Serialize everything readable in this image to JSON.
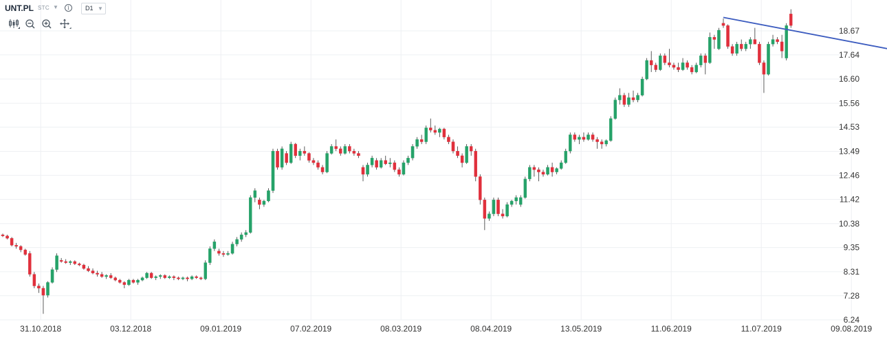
{
  "header": {
    "symbol": "UNT.PL",
    "instrument_type": "STC",
    "info_icon": "info-icon",
    "timeframe": "D1",
    "tools": [
      "candles-icon",
      "zoom-out-icon",
      "zoom-in-icon",
      "move-icon"
    ]
  },
  "colors": {
    "up": "#26a269",
    "down": "#e0303c",
    "trendline": "#3b5bbf",
    "grid": "#eef0f3"
  },
  "chart_data": {
    "type": "candlestick",
    "title": "UNT.PL",
    "ylim": [
      6.24,
      19.5
    ],
    "y_ticks": [
      6.24,
      7.28,
      8.31,
      9.35,
      10.38,
      11.42,
      12.46,
      13.49,
      14.53,
      15.56,
      16.6,
      17.64,
      18.67
    ],
    "y_tick_labels": [
      "6.24",
      "7.28",
      "8.31",
      "9.35",
      "10.38",
      "11.42",
      "12.46",
      "13.49",
      "14.53",
      "15.56",
      "16.60",
      "17.64",
      "18.67"
    ],
    "x_ticks": [
      {
        "label": "31.10.2018",
        "index": 4
      },
      {
        "label": "03.12.2018",
        "index": 24
      },
      {
        "label": "09.01.2019",
        "index": 44
      },
      {
        "label": "07.02.2019",
        "index": 64
      },
      {
        "label": "08.03.2019",
        "index": 84
      },
      {
        "label": "08.04.2019",
        "index": 104
      },
      {
        "label": "13.05.2019",
        "index": 124
      },
      {
        "label": "11.06.2019",
        "index": 144
      },
      {
        "label": "11.07.2019",
        "index": 164
      },
      {
        "label": "09.08.2019",
        "index": 184
      }
    ],
    "ohlc": [
      [
        9.9,
        9.95,
        9.8,
        9.85
      ],
      [
        9.85,
        9.9,
        9.7,
        9.75
      ],
      [
        9.75,
        9.8,
        9.4,
        9.45
      ],
      [
        9.45,
        9.55,
        9.3,
        9.4
      ],
      [
        9.4,
        9.45,
        9.15,
        9.25
      ],
      [
        9.25,
        9.3,
        9.0,
        9.05
      ],
      [
        9.1,
        9.2,
        8.1,
        8.2
      ],
      [
        8.2,
        8.3,
        7.6,
        7.7
      ],
      [
        7.7,
        7.8,
        7.4,
        7.6
      ],
      [
        7.6,
        7.7,
        6.5,
        7.3
      ],
      [
        7.3,
        7.9,
        7.2,
        7.85
      ],
      [
        7.85,
        8.5,
        7.8,
        8.4
      ],
      [
        8.4,
        9.1,
        8.3,
        9.0
      ],
      [
        8.8,
        8.9,
        8.7,
        8.75
      ],
      [
        8.75,
        8.85,
        8.65,
        8.7
      ],
      [
        8.7,
        8.8,
        8.6,
        8.75
      ],
      [
        8.75,
        8.8,
        8.6,
        8.65
      ],
      [
        8.65,
        8.7,
        8.55,
        8.6
      ],
      [
        8.6,
        8.65,
        8.4,
        8.45
      ],
      [
        8.45,
        8.55,
        8.3,
        8.35
      ],
      [
        8.35,
        8.45,
        8.2,
        8.25
      ],
      [
        8.25,
        8.35,
        8.1,
        8.2
      ],
      [
        8.2,
        8.3,
        8.05,
        8.1
      ],
      [
        8.1,
        8.2,
        8.0,
        8.15
      ],
      [
        8.15,
        8.25,
        8.0,
        8.05
      ],
      [
        8.05,
        8.1,
        7.9,
        7.95
      ],
      [
        7.95,
        8.0,
        7.8,
        7.85
      ],
      [
        7.85,
        7.9,
        7.6,
        7.75
      ],
      [
        7.75,
        8.0,
        7.7,
        7.95
      ],
      [
        7.95,
        8.0,
        7.8,
        7.85
      ],
      [
        7.85,
        8.0,
        7.75,
        7.95
      ],
      [
        7.95,
        8.1,
        7.9,
        8.05
      ],
      [
        8.05,
        8.3,
        8.0,
        8.25
      ],
      [
        8.25,
        8.3,
        8.0,
        8.05
      ],
      [
        8.05,
        8.15,
        7.95,
        8.1
      ],
      [
        8.1,
        8.2,
        8.0,
        8.15
      ],
      [
        8.15,
        8.2,
        8.0,
        8.05
      ],
      [
        8.05,
        8.15,
        8.0,
        8.1
      ],
      [
        8.1,
        8.15,
        7.95,
        8.05
      ],
      [
        8.05,
        8.1,
        7.95,
        8.0
      ],
      [
        8.0,
        8.1,
        7.95,
        8.05
      ],
      [
        8.05,
        8.1,
        7.9,
        8.0
      ],
      [
        8.0,
        8.15,
        7.95,
        8.1
      ],
      [
        8.1,
        8.15,
        8.0,
        8.05
      ],
      [
        8.05,
        8.1,
        7.95,
        8.0
      ],
      [
        8.0,
        8.8,
        7.95,
        8.7
      ],
      [
        8.7,
        9.4,
        8.6,
        9.3
      ],
      [
        9.3,
        9.7,
        9.2,
        9.6
      ],
      [
        9.2,
        9.3,
        9.0,
        9.1
      ],
      [
        9.1,
        9.2,
        8.95,
        9.05
      ],
      [
        9.05,
        9.2,
        9.0,
        9.1
      ],
      [
        9.1,
        9.6,
        9.05,
        9.5
      ],
      [
        9.5,
        9.8,
        9.4,
        9.7
      ],
      [
        9.7,
        10.0,
        9.6,
        9.9
      ],
      [
        9.9,
        10.1,
        9.8,
        10.0
      ],
      [
        10.0,
        11.6,
        9.95,
        11.5
      ],
      [
        11.5,
        11.9,
        11.3,
        11.8
      ],
      [
        11.4,
        11.5,
        11.0,
        11.2
      ],
      [
        11.2,
        11.4,
        11.1,
        11.35
      ],
      [
        11.35,
        11.9,
        11.3,
        11.8
      ],
      [
        11.8,
        13.6,
        11.7,
        13.5
      ],
      [
        13.5,
        13.6,
        12.7,
        12.8
      ],
      [
        12.8,
        13.7,
        12.7,
        13.6
      ],
      [
        13.4,
        13.5,
        12.9,
        13.0
      ],
      [
        13.0,
        13.9,
        12.95,
        13.8
      ],
      [
        13.8,
        13.85,
        13.2,
        13.3
      ],
      [
        13.3,
        13.6,
        13.1,
        13.5
      ],
      [
        13.5,
        13.7,
        13.3,
        13.4
      ],
      [
        13.4,
        13.45,
        13.0,
        13.1
      ],
      [
        13.1,
        13.2,
        12.9,
        13.0
      ],
      [
        13.0,
        13.1,
        12.7,
        12.8
      ],
      [
        12.8,
        12.9,
        12.5,
        12.6
      ],
      [
        12.6,
        13.5,
        12.55,
        13.4
      ],
      [
        13.4,
        13.8,
        13.35,
        13.7
      ],
      [
        13.7,
        14.0,
        13.5,
        13.6
      ],
      [
        13.6,
        13.7,
        13.3,
        13.4
      ],
      [
        13.4,
        13.8,
        13.35,
        13.7
      ],
      [
        13.7,
        13.8,
        13.4,
        13.5
      ],
      [
        13.5,
        13.6,
        13.3,
        13.4
      ],
      [
        13.4,
        13.5,
        13.2,
        13.3
      ],
      [
        12.8,
        12.9,
        12.2,
        12.5
      ],
      [
        12.5,
        13.0,
        12.4,
        12.9
      ],
      [
        12.9,
        13.3,
        12.8,
        13.2
      ],
      [
        13.1,
        13.2,
        12.7,
        12.8
      ],
      [
        12.8,
        13.2,
        12.75,
        13.1
      ],
      [
        13.1,
        13.3,
        12.9,
        12.95
      ],
      [
        12.95,
        13.2,
        12.8,
        13.0
      ],
      [
        13.0,
        13.1,
        12.6,
        12.7
      ],
      [
        12.7,
        12.8,
        12.4,
        12.5
      ],
      [
        12.5,
        13.1,
        12.45,
        13.0
      ],
      [
        13.0,
        13.3,
        12.9,
        13.2
      ],
      [
        13.2,
        13.8,
        13.1,
        13.7
      ],
      [
        13.7,
        14.1,
        13.6,
        14.0
      ],
      [
        14.0,
        14.2,
        13.8,
        13.9
      ],
      [
        13.9,
        14.6,
        13.8,
        14.5
      ],
      [
        14.5,
        14.9,
        14.3,
        14.4
      ],
      [
        14.4,
        14.6,
        14.2,
        14.3
      ],
      [
        14.3,
        14.5,
        14.1,
        14.45
      ],
      [
        14.45,
        14.5,
        14.0,
        14.1
      ],
      [
        14.1,
        14.2,
        13.8,
        13.9
      ],
      [
        13.9,
        14.0,
        13.4,
        13.5
      ],
      [
        13.5,
        13.7,
        13.2,
        13.3
      ],
      [
        13.3,
        13.4,
        12.8,
        13.0
      ],
      [
        13.0,
        13.8,
        12.95,
        13.7
      ],
      [
        13.7,
        13.8,
        13.3,
        13.5
      ],
      [
        13.5,
        13.6,
        12.2,
        12.4
      ],
      [
        12.4,
        12.5,
        11.2,
        11.4
      ],
      [
        11.4,
        11.5,
        10.1,
        10.6
      ],
      [
        10.6,
        10.9,
        10.5,
        10.8
      ],
      [
        10.8,
        11.5,
        10.7,
        11.4
      ],
      [
        11.4,
        11.5,
        10.7,
        10.8
      ],
      [
        10.8,
        11.0,
        10.6,
        10.7
      ],
      [
        10.7,
        11.3,
        10.65,
        11.2
      ],
      [
        11.2,
        11.4,
        11.1,
        11.35
      ],
      [
        11.35,
        11.6,
        11.2,
        11.5
      ],
      [
        11.2,
        11.6,
        11.1,
        11.5
      ],
      [
        11.5,
        12.4,
        11.45,
        12.3
      ],
      [
        12.3,
        12.9,
        12.2,
        12.8
      ],
      [
        12.8,
        12.9,
        12.4,
        12.7
      ],
      [
        12.7,
        12.8,
        12.2,
        12.6
      ],
      [
        12.6,
        12.7,
        12.4,
        12.5
      ],
      [
        12.5,
        12.9,
        12.45,
        12.8
      ],
      [
        12.8,
        13.0,
        12.4,
        12.6
      ],
      [
        12.6,
        12.8,
        12.5,
        12.75
      ],
      [
        12.75,
        13.1,
        12.7,
        13.0
      ],
      [
        13.0,
        13.6,
        12.95,
        13.5
      ],
      [
        13.5,
        14.3,
        13.4,
        14.2
      ],
      [
        14.2,
        14.3,
        13.9,
        14.0
      ],
      [
        14.0,
        14.2,
        13.8,
        14.1
      ],
      [
        14.1,
        14.3,
        13.9,
        14.0
      ],
      [
        14.0,
        14.3,
        13.95,
        14.2
      ],
      [
        14.2,
        14.3,
        13.9,
        14.0
      ],
      [
        14.0,
        14.1,
        13.6,
        13.9
      ],
      [
        13.9,
        14.0,
        13.6,
        13.8
      ],
      [
        13.8,
        14.0,
        13.7,
        13.95
      ],
      [
        13.95,
        15.0,
        13.9,
        14.9
      ],
      [
        14.9,
        15.8,
        14.85,
        15.7
      ],
      [
        15.7,
        16.2,
        15.5,
        15.9
      ],
      [
        15.9,
        16.0,
        15.4,
        15.5
      ],
      [
        15.5,
        16.0,
        15.4,
        15.8
      ],
      [
        15.8,
        16.1,
        15.6,
        15.7
      ],
      [
        15.7,
        16.0,
        15.6,
        15.9
      ],
      [
        15.9,
        16.7,
        15.85,
        16.6
      ],
      [
        16.6,
        17.5,
        16.55,
        17.4
      ],
      [
        17.4,
        17.8,
        16.9,
        17.2
      ],
      [
        17.2,
        17.3,
        16.9,
        17.0
      ],
      [
        17.0,
        17.7,
        16.95,
        17.6
      ],
      [
        17.6,
        17.7,
        17.2,
        17.3
      ],
      [
        17.3,
        17.9,
        17.1,
        17.2
      ],
      [
        17.2,
        17.3,
        17.0,
        17.1
      ],
      [
        17.1,
        17.3,
        16.9,
        17.0
      ],
      [
        17.0,
        17.5,
        16.95,
        17.3
      ],
      [
        17.3,
        17.4,
        17.0,
        17.1
      ],
      [
        17.1,
        17.2,
        16.8,
        16.9
      ],
      [
        16.9,
        17.3,
        16.85,
        17.2
      ],
      [
        17.2,
        17.7,
        17.1,
        17.6
      ],
      [
        17.6,
        17.7,
        16.8,
        17.3
      ],
      [
        17.3,
        18.6,
        17.25,
        18.4
      ],
      [
        18.4,
        18.5,
        17.9,
        18.3
      ],
      [
        17.9,
        18.8,
        17.85,
        18.7
      ],
      [
        19.0,
        19.2,
        18.8,
        18.9
      ],
      [
        18.9,
        18.95,
        17.9,
        18.0
      ],
      [
        18.0,
        18.1,
        17.6,
        17.7
      ],
      [
        17.7,
        18.2,
        17.6,
        18.1
      ],
      [
        18.1,
        18.3,
        17.8,
        17.9
      ],
      [
        17.9,
        18.2,
        17.8,
        18.1
      ],
      [
        18.1,
        18.4,
        17.9,
        18.3
      ],
      [
        18.3,
        18.8,
        18.2,
        18.1
      ],
      [
        18.1,
        18.2,
        17.2,
        17.3
      ],
      [
        17.3,
        17.4,
        16.0,
        16.8
      ],
      [
        16.8,
        18.2,
        16.75,
        18.1
      ],
      [
        18.1,
        18.5,
        18.0,
        18.3
      ],
      [
        18.3,
        18.4,
        18.1,
        18.2
      ],
      [
        18.2,
        18.5,
        17.5,
        17.8
      ],
      [
        17.5,
        19.0,
        17.4,
        18.9
      ],
      [
        19.4,
        19.6,
        18.8,
        18.9
      ]
    ],
    "trendline": {
      "from": {
        "index": 160,
        "price": 19.25
      },
      "to": {
        "index": 202,
        "price": 17.7
      }
    },
    "grid": true,
    "xlabel": "",
    "ylabel": ""
  }
}
